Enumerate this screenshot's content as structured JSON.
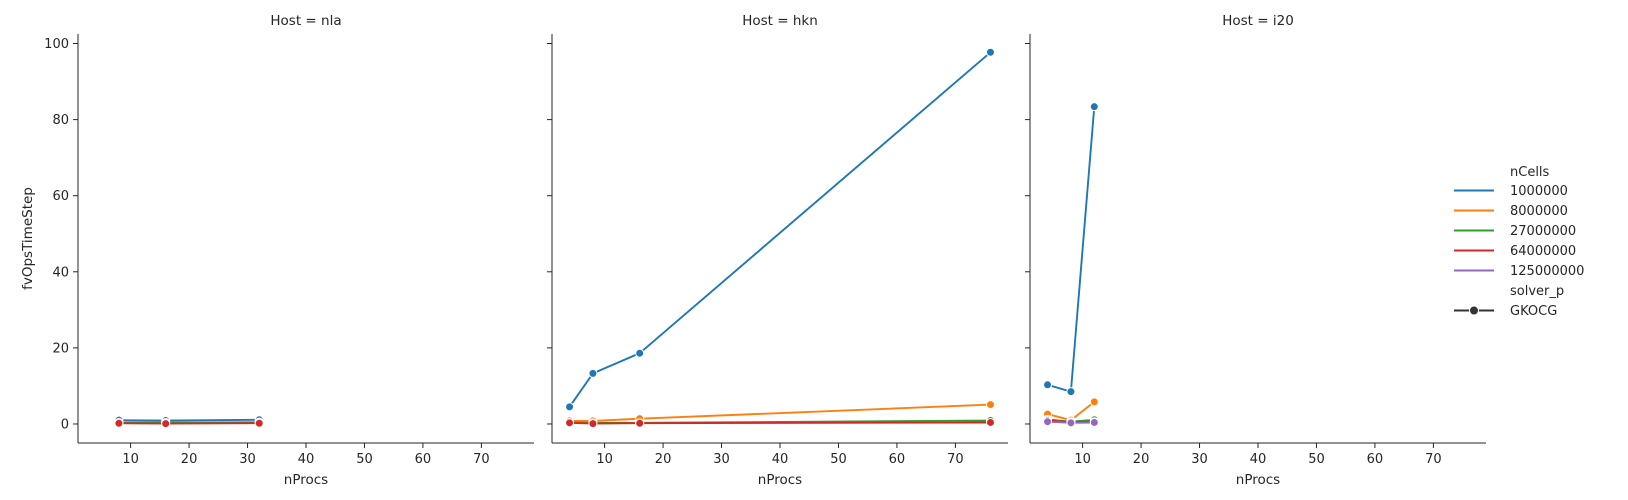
{
  "chart_data": {
    "type": "line",
    "y_label": "fvOpsTimeStep",
    "x_label": "nProcs",
    "xlim": [
      1,
      79
    ],
    "ylim": [
      -5,
      102.5
    ],
    "x_ticks": [
      10,
      20,
      30,
      40,
      50,
      60,
      70
    ],
    "y_ticks": [
      0,
      20,
      40,
      60,
      80,
      100
    ],
    "grid": false,
    "legend_position": "right",
    "legend": {
      "hue_title": "nCells",
      "style_title": "solver_p",
      "style_entries": [
        "GKOCG"
      ]
    },
    "series_colors": {
      "1000000": "#1f77b4",
      "8000000": "#ff7f0e",
      "27000000": "#2ca02c",
      "64000000": "#d62728",
      "125000000": "#9467bd"
    },
    "panels": [
      {
        "title": "Host = nla",
        "series": [
          {
            "name": "1000000",
            "x": [
              8,
              16,
              32
            ],
            "y": [
              1.0,
              0.9,
              1.1
            ]
          },
          {
            "name": "8000000",
            "x": [
              8,
              16,
              32
            ],
            "y": [
              0.4,
              0.4,
              0.5
            ]
          },
          {
            "name": "27000000",
            "x": [
              8,
              16,
              32
            ],
            "y": [
              0.3,
              0.3,
              0.3
            ]
          },
          {
            "name": "64000000",
            "x": [
              8,
              16,
              32
            ],
            "y": [
              0.2,
              0.1,
              0.2
            ]
          }
        ]
      },
      {
        "title": "Host = hkn",
        "series": [
          {
            "name": "1000000",
            "x": [
              4,
              8,
              16,
              76
            ],
            "y": [
              4.5,
              13.3,
              18.6,
              97.7
            ]
          },
          {
            "name": "8000000",
            "x": [
              4,
              8,
              16,
              76
            ],
            "y": [
              0.8,
              0.8,
              1.4,
              5.1
            ]
          },
          {
            "name": "27000000",
            "x": [
              4,
              8,
              16,
              76
            ],
            "y": [
              0.4,
              0.3,
              0.3,
              0.9
            ]
          },
          {
            "name": "64000000",
            "x": [
              4,
              8,
              16,
              76
            ],
            "y": [
              0.3,
              0.1,
              0.2,
              0.4
            ]
          }
        ]
      },
      {
        "title": "Host = i20",
        "series": [
          {
            "name": "1000000",
            "x": [
              4,
              8,
              12
            ],
            "y": [
              10.3,
              8.5,
              83.4
            ]
          },
          {
            "name": "8000000",
            "x": [
              4,
              8,
              12
            ],
            "y": [
              2.6,
              1.0,
              5.8
            ]
          },
          {
            "name": "27000000",
            "x": [
              4,
              8,
              12
            ],
            "y": [
              1.2,
              0.6,
              1.1
            ]
          },
          {
            "name": "64000000",
            "x": [
              4,
              8,
              12
            ],
            "y": [
              0.9,
              0.5,
              0.6
            ]
          },
          {
            "name": "125000000",
            "x": [
              4,
              8,
              12
            ],
            "y": [
              0.6,
              0.3,
              0.4
            ]
          }
        ]
      }
    ]
  }
}
